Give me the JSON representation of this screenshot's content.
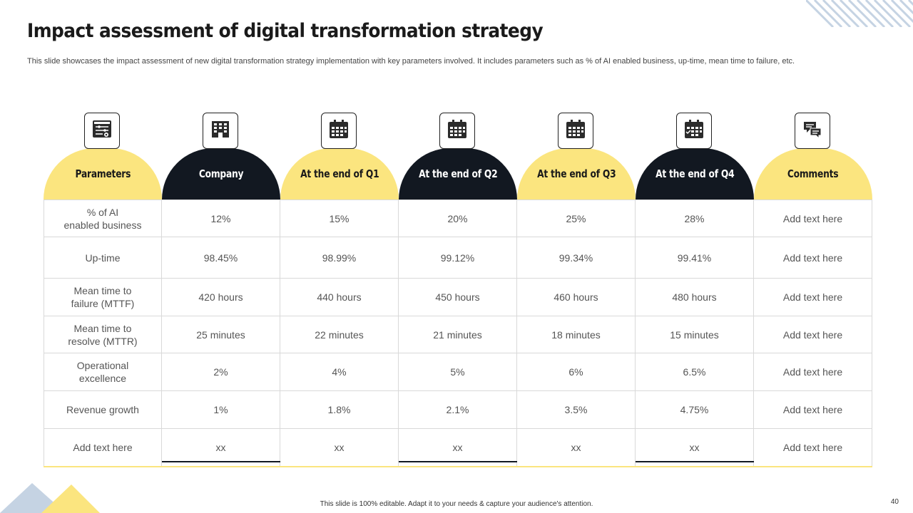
{
  "title": "Impact assessment of digital transformation strategy",
  "subtitle": "This slide showcases the impact assessment of new digital transformation strategy implementation with key parameters involved. It includes parameters such as % of AI  enabled business, up-time, mean time to failure, etc.",
  "columns": [
    {
      "label": "Parameters",
      "icon": "dashboard-icon",
      "style": "yellow"
    },
    {
      "label": "Company",
      "icon": "building-icon",
      "style": "dark"
    },
    {
      "label": "At the  end of Q1",
      "icon": "calendar-icon",
      "style": "yellow"
    },
    {
      "label": "At the  end of Q2",
      "icon": "calendar-icon",
      "style": "dark"
    },
    {
      "label": "At the  end of Q3",
      "icon": "calendar-icon",
      "style": "yellow"
    },
    {
      "label": "At the  end of Q4",
      "icon": "calendar-check-icon",
      "style": "dark"
    },
    {
      "label": "Comments",
      "icon": "chat-icon",
      "style": "yellow"
    }
  ],
  "rows": [
    [
      "% of AI\nenabled business",
      "12%",
      "15%",
      "20%",
      "25%",
      "28%",
      "Add text here"
    ],
    [
      "Up-time",
      "98.45%",
      "98.99%",
      "99.12%",
      "99.34%",
      "99.41%",
      "Add text here"
    ],
    [
      "Mean time to\nfailure (MTTF)",
      "420 hours",
      "440 hours",
      "450 hours",
      "460 hours",
      "480 hours",
      "Add text here"
    ],
    [
      "Mean time to\nresolve (MTTR)",
      "25 minutes",
      "22 minutes",
      "21 minutes",
      "18 minutes",
      "15 minutes",
      "Add text here"
    ],
    [
      "Operational\nexcellence",
      "2%",
      "4%",
      "5%",
      "6%",
      "6.5%",
      "Add text here"
    ],
    [
      "Revenue growth",
      "1%",
      "1.8%",
      "2.1%",
      "3.5%",
      "4.75%",
      "Add text here"
    ],
    [
      "Add text here",
      "xx",
      "xx",
      "xx",
      "xx",
      "xx",
      "Add text here"
    ]
  ],
  "footer": "This slide is 100% editable.  Adapt it to your needs & capture your audience's attention.",
  "page_number": "40",
  "colors": {
    "yellow": "#fbe57f",
    "dark": "#121821",
    "accent_blue": "#c5d3e3"
  }
}
